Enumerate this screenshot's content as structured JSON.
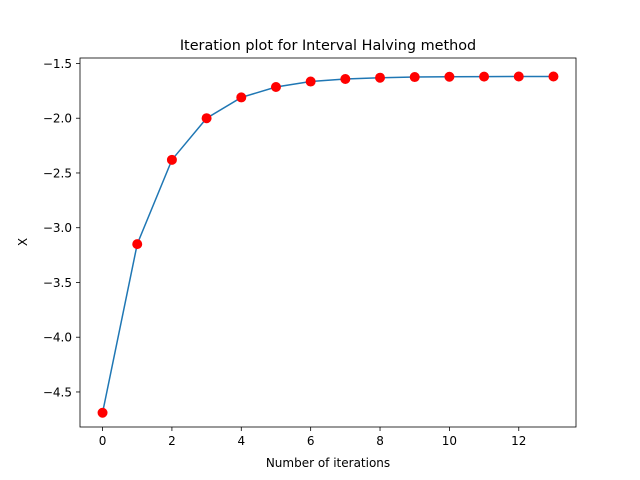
{
  "chart_data": {
    "type": "line",
    "title": "Iteration plot for Interval Halving method",
    "xlabel": "Number of iterations",
    "ylabel": "X",
    "xlim": [
      -0.65,
      13.65
    ],
    "ylim": [
      -4.82,
      -1.45
    ],
    "grid": false,
    "legend": "none",
    "xticks": [
      0,
      2,
      4,
      6,
      8,
      10,
      12
    ],
    "xtick_labels": [
      "0",
      "2",
      "4",
      "6",
      "8",
      "10",
      "12"
    ],
    "yticks": [
      -4.5,
      -4.0,
      -3.5,
      -3.0,
      -2.5,
      -2.0,
      -1.5
    ],
    "ytick_labels": [
      "−4.5",
      "−4.0",
      "−3.5",
      "−3.0",
      "−2.5",
      "−2.0",
      "−1.5"
    ],
    "series": [
      {
        "x": [
          0,
          1,
          2,
          3,
          4,
          5,
          6,
          7,
          8,
          9,
          10,
          11,
          12,
          13
        ],
        "values": [
          -4.69,
          -3.15,
          -2.38,
          -2.0,
          -1.81,
          -1.715,
          -1.665,
          -1.642,
          -1.63,
          -1.624,
          -1.621,
          -1.62,
          -1.619,
          -1.619
        ],
        "line_color": "#1f77b4",
        "marker_color": "#ff0000"
      }
    ]
  }
}
